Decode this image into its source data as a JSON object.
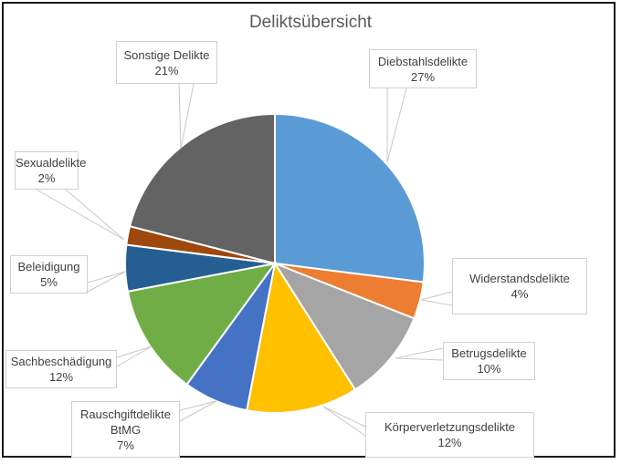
{
  "chart_data": {
    "type": "pie",
    "title": "Deliktsübersicht",
    "start_angle_deg": 0,
    "direction": "clockwise",
    "categories": [
      "Diebstahlsdelikte",
      "Widerstandsdelikte",
      "Betrugsdelikte",
      "Körperverletzungsdelikte",
      "Rauschgiftdelikte BtMG",
      "Sachbeschädigung",
      "Beleidigung",
      "Sexualdelikte",
      "Sonstige Delikte"
    ],
    "values": [
      27,
      4,
      10,
      12,
      7,
      12,
      5,
      2,
      21
    ],
    "unit": "%",
    "colors": [
      "#5B9BD5",
      "#ED7D31",
      "#A5A5A5",
      "#FFC000",
      "#4472C4",
      "#70AD47",
      "#255E91",
      "#9E480E",
      "#636363"
    ],
    "legend": "none",
    "data_labels": "category name + percentage, callouts with leader lines"
  },
  "labels": [
    {
      "id": "diebstahl",
      "lines": [
        "Diebstahlsdelikte",
        "27%"
      ]
    },
    {
      "id": "widerstand",
      "lines": [
        "Widerstandsdelikte",
        "4%"
      ]
    },
    {
      "id": "betrug",
      "lines": [
        "Betrugsdelikte",
        "10%"
      ]
    },
    {
      "id": "koerper",
      "lines": [
        "Körperverletzungsdelikte",
        "12%"
      ]
    },
    {
      "id": "rausch",
      "lines": [
        "Rauschgiftdelikte",
        "BtMG",
        "7%"
      ]
    },
    {
      "id": "sach",
      "lines": [
        "Sachbeschädigung",
        "12%"
      ]
    },
    {
      "id": "beleid",
      "lines": [
        "Beleidigung",
        "5%"
      ]
    },
    {
      "id": "sexual",
      "lines": [
        "Sexualdelikte",
        "2%"
      ]
    },
    {
      "id": "sonstige",
      "lines": [
        "Sonstige Delikte",
        "21%"
      ]
    }
  ]
}
